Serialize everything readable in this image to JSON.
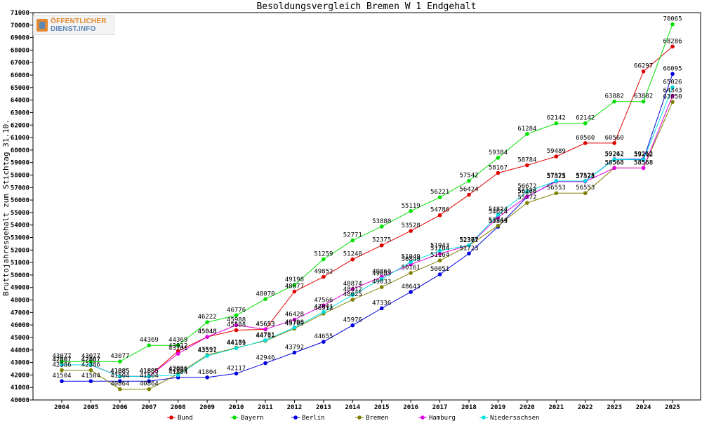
{
  "logo": {
    "line1": "ÖFFENTLICHER",
    "line2": "DIENST.INFO"
  },
  "chart_data": {
    "type": "line",
    "title": "Besoldungsvergleich Bremen W 1 Endgehalt",
    "xlabel": "",
    "ylabel": "Bruttojahresgehalt zum Stichtag 31.10.",
    "ylim": [
      40000,
      71000
    ],
    "ytick_step": 1000,
    "grid": false,
    "legend_position": "bottom",
    "categories": [
      "2004",
      "2005",
      "2006",
      "2007",
      "2008",
      "2009",
      "2010",
      "2011",
      "2012",
      "2013",
      "2014",
      "2015",
      "2016",
      "2017",
      "2018",
      "2019",
      "2020",
      "2021",
      "2022",
      "2023",
      "2024",
      "2025"
    ],
    "series": [
      {
        "name": "Bund",
        "color": "#e00000",
        "values": [
          42807,
          42807,
          41885,
          41885,
          43912,
          45048,
          45588,
          45653,
          48677,
          49852,
          51248,
          52375,
          53528,
          54786,
          56424,
          58167,
          58784,
          59489,
          60560,
          60560,
          66297,
          68286
        ]
      },
      {
        "name": "Bayern",
        "color": "#00e000",
        "values": [
          43077,
          43077,
          43077,
          44369,
          44369,
          46222,
          46776,
          48070,
          49198,
          51259,
          52771,
          53880,
          55119,
          56221,
          57542,
          59384,
          61284,
          62142,
          62142,
          63882,
          63882,
          70065
        ]
      },
      {
        "name": "Berlin",
        "color": "#0000e0",
        "values": [
          41504,
          41504,
          41504,
          41504,
          41804,
          41804,
          42117,
          42946,
          43792,
          44655,
          45976,
          47336,
          48643,
          50051,
          51723,
          53863,
          56260,
          57525,
          57525,
          59262,
          59262,
          66095
        ]
      },
      {
        "name": "Bremen",
        "color": "#808000",
        "values": [
          42386,
          42386,
          40864,
          40864,
          42086,
          43597,
          44181,
          44731,
          45709,
          46912,
          48025,
          49033,
          50161,
          51164,
          52367,
          53944,
          55772,
          56553,
          56553,
          58568,
          58568,
          63850
        ]
      },
      {
        "name": "Hamburg",
        "color": "#e000e0",
        "values": [
          42807,
          42807,
          41885,
          41885,
          43701,
          45048,
          45988,
          45653,
          46428,
          47566,
          48874,
          49860,
          50849,
          51704,
          52371,
          54624,
          56276,
          57475,
          57475,
          58568,
          58568,
          64343
        ]
      },
      {
        "name": "Niedersachsen",
        "color": "#00e0e0",
        "values": [
          42807,
          42807,
          41885,
          41885,
          42001,
          43531,
          44139,
          44781,
          45798,
          47041,
          48412,
          49683,
          51049,
          51943,
          52377,
          54824,
          56672,
          57521,
          57521,
          59242,
          59212,
          65026
        ]
      }
    ]
  }
}
